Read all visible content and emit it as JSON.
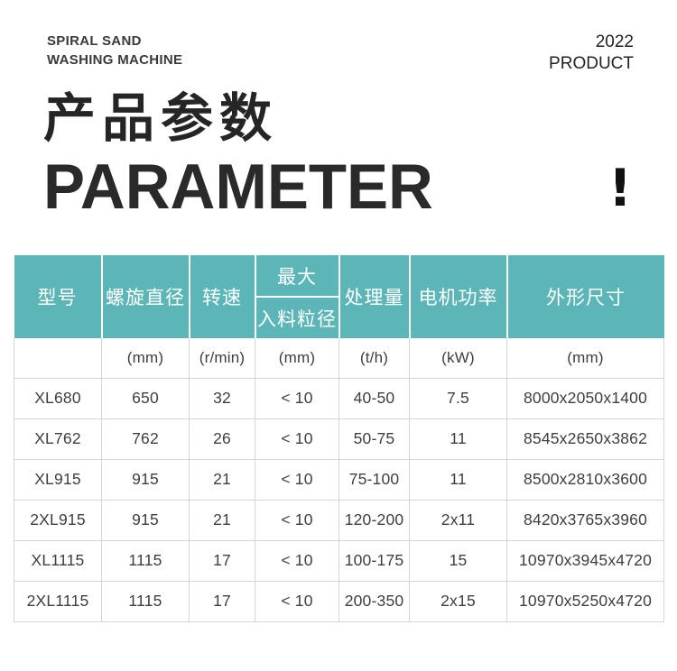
{
  "brand": {
    "line1": "SPIRAL SAND",
    "line2": "WASHING MACHINE"
  },
  "edition": {
    "year": "2022",
    "label": "PRODUCT"
  },
  "title": {
    "zh": "产品参数",
    "en": "PARAMETER",
    "mark": "!"
  },
  "colors": {
    "accent_teal": "#5CB6B7",
    "header_text": "#FFFFFF",
    "body_text": "#3E3E3E",
    "heading_text": "#252525",
    "grid_border": "#D5D5D5"
  },
  "table": {
    "columns": [
      {
        "label": "型号",
        "unit": ""
      },
      {
        "label": "螺旋直径",
        "unit": "(mm)"
      },
      {
        "label": "转速",
        "unit": "(r/min)"
      },
      {
        "label_top": "最大",
        "label_bottom": "入料粒径",
        "unit": "(mm)"
      },
      {
        "label": "处理量",
        "unit": "(t/h)"
      },
      {
        "label": "电机功率",
        "unit": "(kW)"
      },
      {
        "label": "外形尺寸",
        "unit": "(mm)"
      }
    ],
    "rows": [
      [
        "XL680",
        "650",
        "32",
        "< 10",
        "40-50",
        "7.5",
        "8000x2050x1400"
      ],
      [
        "XL762",
        "762",
        "26",
        "< 10",
        "50-75",
        "11",
        "8545x2650x3862"
      ],
      [
        "XL915",
        "915",
        "21",
        "< 10",
        "75-100",
        "11",
        "8500x2810x3600"
      ],
      [
        "2XL915",
        "915",
        "21",
        "< 10",
        "120-200",
        "2x11",
        "8420x3765x3960"
      ],
      [
        "XL1115",
        "1115",
        "17",
        "< 10",
        "100-175",
        "15",
        "10970x3945x4720"
      ],
      [
        "2XL1115",
        "1115",
        "17",
        "< 10",
        "200-350",
        "2x15",
        "10970x5250x4720"
      ]
    ],
    "cell_names": [
      "model-cell",
      "spiral-diameter-cell",
      "speed-cell",
      "max-feed-cell",
      "capacity-cell",
      "motor-power-cell",
      "dimensions-cell"
    ]
  }
}
